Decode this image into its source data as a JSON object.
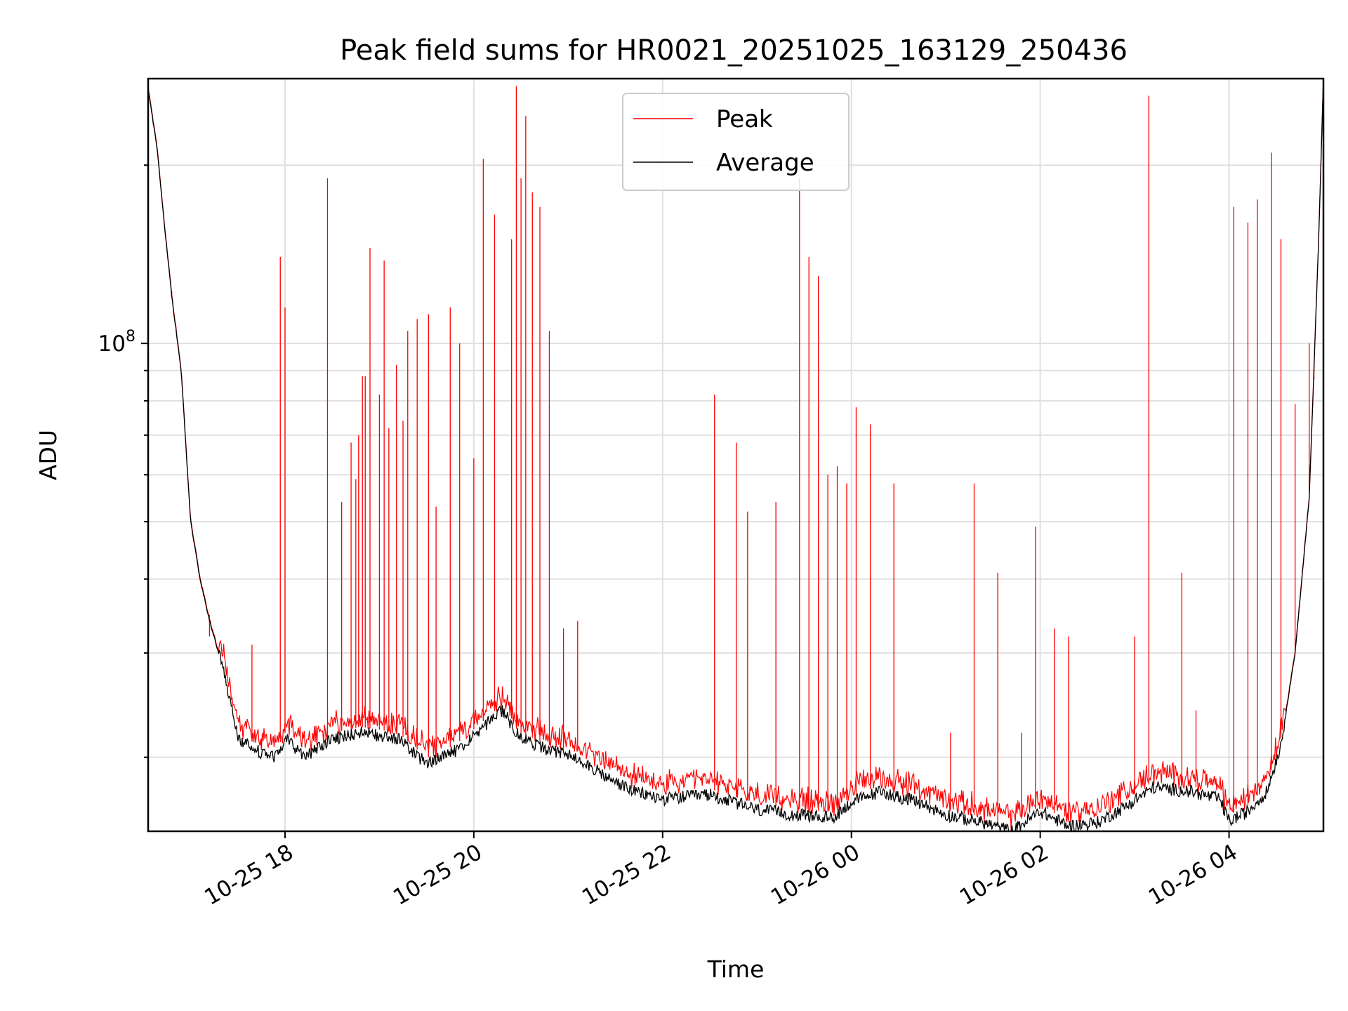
{
  "chart_data": {
    "type": "line",
    "title": "Peak field sums for HR0021_20251025_163129_250436",
    "xlabel": "Time",
    "ylabel": "ADU",
    "yscale": "log",
    "xlim_hours_from_1025_16h": [
      0.55,
      13.0
    ],
    "ylim": [
      15000000,
      280000000
    ],
    "y_major_tick": {
      "value": 100000000,
      "label_base": "10",
      "label_exp": "8"
    },
    "y_minor_ticks": [
      20000000,
      30000000,
      40000000,
      50000000,
      60000000,
      70000000,
      80000000,
      90000000,
      200000000
    ],
    "x_ticks": [
      {
        "hour": 2,
        "label": "10-25 18"
      },
      {
        "hour": 4,
        "label": "10-25 20"
      },
      {
        "hour": 6,
        "label": "10-25 22"
      },
      {
        "hour": 8,
        "label": "10-26 00"
      },
      {
        "hour": 10,
        "label": "10-26 02"
      },
      {
        "hour": 12,
        "label": "10-26 04"
      }
    ],
    "grid": true,
    "legend_position": "top-center",
    "average_baseline": [
      [
        0.55,
        270000000
      ],
      [
        0.65,
        210000000
      ],
      [
        0.72,
        160000000
      ],
      [
        0.8,
        120000000
      ],
      [
        0.9,
        90000000
      ],
      [
        1.0,
        50000000
      ],
      [
        1.1,
        40000000
      ],
      [
        1.2,
        34000000
      ],
      [
        1.35,
        28000000
      ],
      [
        1.5,
        21500000
      ],
      [
        1.7,
        20500000
      ],
      [
        1.9,
        20000000
      ],
      [
        2.0,
        21500000
      ],
      [
        2.2,
        20000000
      ],
      [
        2.5,
        21500000
      ],
      [
        2.8,
        22000000
      ],
      [
        3.2,
        21500000
      ],
      [
        3.5,
        19500000
      ],
      [
        3.8,
        20500000
      ],
      [
        4.1,
        22500000
      ],
      [
        4.3,
        24000000
      ],
      [
        4.5,
        21500000
      ],
      [
        4.8,
        20500000
      ],
      [
        5.1,
        20000000
      ],
      [
        5.4,
        18500000
      ],
      [
        5.7,
        17500000
      ],
      [
        6.0,
        17000000
      ],
      [
        6.5,
        17300000
      ],
      [
        7.0,
        16300000
      ],
      [
        7.4,
        16000000
      ],
      [
        7.8,
        15800000
      ],
      [
        8.0,
        16800000
      ],
      [
        8.3,
        17500000
      ],
      [
        8.7,
        16800000
      ],
      [
        9.0,
        16000000
      ],
      [
        9.4,
        15500000
      ],
      [
        9.7,
        15000000
      ],
      [
        10.0,
        16200000
      ],
      [
        10.3,
        15300000
      ],
      [
        10.6,
        15500000
      ],
      [
        10.9,
        16500000
      ],
      [
        11.2,
        17800000
      ],
      [
        11.6,
        17500000
      ],
      [
        11.9,
        17000000
      ],
      [
        12.0,
        15600000
      ],
      [
        12.2,
        16200000
      ],
      [
        12.4,
        17500000
      ],
      [
        12.55,
        21000000
      ],
      [
        12.7,
        30000000
      ],
      [
        12.85,
        55000000
      ],
      [
        12.95,
        150000000
      ],
      [
        13.0,
        280000000
      ]
    ],
    "peak_spikes": [
      [
        0.8,
        120000000
      ],
      [
        1.2,
        32000000
      ],
      [
        1.55,
        22000000
      ],
      [
        1.65,
        31000000
      ],
      [
        1.75,
        21500000
      ],
      [
        1.95,
        140000000
      ],
      [
        2.0,
        115000000
      ],
      [
        2.45,
        190000000
      ],
      [
        2.6,
        54000000
      ],
      [
        2.7,
        68000000
      ],
      [
        2.75,
        59000000
      ],
      [
        2.78,
        70000000
      ],
      [
        2.82,
        88000000
      ],
      [
        2.85,
        88000000
      ],
      [
        2.9,
        145000000
      ],
      [
        3.0,
        82000000
      ],
      [
        3.05,
        138000000
      ],
      [
        3.1,
        72000000
      ],
      [
        3.18,
        92000000
      ],
      [
        3.25,
        74000000
      ],
      [
        3.3,
        105000000
      ],
      [
        3.4,
        110000000
      ],
      [
        3.52,
        112000000
      ],
      [
        3.6,
        53000000
      ],
      [
        3.75,
        115000000
      ],
      [
        3.85,
        100000000
      ],
      [
        4.0,
        64000000
      ],
      [
        4.1,
        205000000
      ],
      [
        4.22,
        165000000
      ],
      [
        4.4,
        150000000
      ],
      [
        4.45,
        272000000
      ],
      [
        4.5,
        190000000
      ],
      [
        4.55,
        242000000
      ],
      [
        4.62,
        180000000
      ],
      [
        4.7,
        170000000
      ],
      [
        4.8,
        105000000
      ],
      [
        4.95,
        33000000
      ],
      [
        5.1,
        34000000
      ],
      [
        6.55,
        82000000
      ],
      [
        6.78,
        68000000
      ],
      [
        6.9,
        52000000
      ],
      [
        7.2,
        54000000
      ],
      [
        7.45,
        190000000
      ],
      [
        7.55,
        140000000
      ],
      [
        7.65,
        130000000
      ],
      [
        7.75,
        60000000
      ],
      [
        7.85,
        62000000
      ],
      [
        7.95,
        58000000
      ],
      [
        8.05,
        78000000
      ],
      [
        8.2,
        73000000
      ],
      [
        8.45,
        58000000
      ],
      [
        9.05,
        22000000
      ],
      [
        9.3,
        58000000
      ],
      [
        9.55,
        41000000
      ],
      [
        9.8,
        22000000
      ],
      [
        9.95,
        49000000
      ],
      [
        10.15,
        33000000
      ],
      [
        10.3,
        32000000
      ],
      [
        11.0,
        32000000
      ],
      [
        11.15,
        262000000
      ],
      [
        11.5,
        41000000
      ],
      [
        11.65,
        24000000
      ],
      [
        12.05,
        170000000
      ],
      [
        12.2,
        160000000
      ],
      [
        12.3,
        175000000
      ],
      [
        12.45,
        210000000
      ],
      [
        12.55,
        150000000
      ],
      [
        12.7,
        79000000
      ],
      [
        12.85,
        100000000
      ],
      [
        12.9,
        87000000
      ]
    ],
    "series": [
      {
        "name": "Peak",
        "color": "#ff0000"
      },
      {
        "name": "Average",
        "color": "#000000"
      }
    ]
  }
}
